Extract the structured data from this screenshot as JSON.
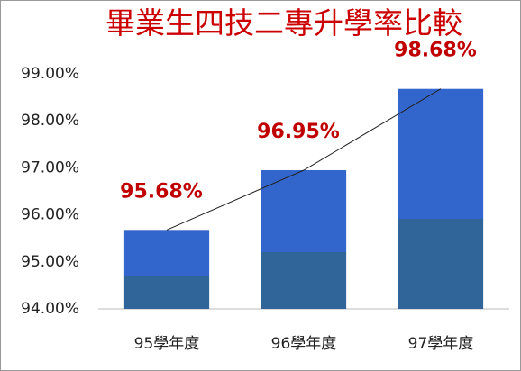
{
  "chart_data": {
    "type": "bar",
    "title": "畢業生四技二專升學率比較",
    "categories": [
      "95學年度",
      "96學年度",
      "97學年度"
    ],
    "values": [
      95.68,
      96.95,
      98.68
    ],
    "value_labels": [
      "95.68%",
      "96.95%",
      "98.68%"
    ],
    "color": "#3366cc",
    "ylim": [
      94,
      99
    ],
    "yticks": [
      {
        "value": 94,
        "label": "94.00%"
      },
      {
        "value": 95,
        "label": "95.00%"
      },
      {
        "value": 96,
        "label": "96.00%"
      },
      {
        "value": 97,
        "label": "97.00%"
      },
      {
        "value": 98,
        "label": "98.00%"
      },
      {
        "value": 99,
        "label": "99.00%"
      }
    ],
    "grid": false,
    "trendline": true
  }
}
